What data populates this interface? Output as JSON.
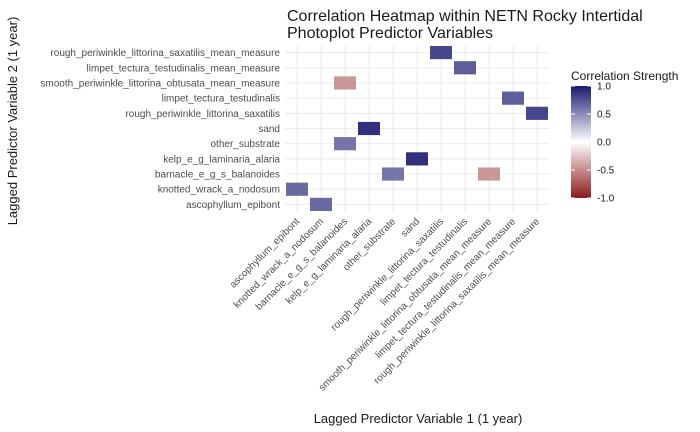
{
  "chart_data": {
    "type": "heatmap",
    "title": [
      "Correlation Heatmap within NETN Rocky Intertidal",
      "Photoplot Predictor Variables"
    ],
    "xlabel": "Lagged Predictor Variable 1 (1 year)",
    "ylabel": "Lagged Predictor Variable 2 (1 year)",
    "x_categories": [
      "ascophyllum_epibont",
      "knotted_wrack_a_nodosum",
      "barnacle_e_g_s_balanoides",
      "kelp_e_g_laminaria_alaria",
      "other_substrate",
      "sand",
      "rough_periwinkle_littorina_saxatilis",
      "limpet_tectura_testudinalis",
      "smooth_periwinkle_littorina_obtusata_mean_measure",
      "limpet_tectura_testudinalis_mean_measure",
      "rough_periwinkle_littorina_saxatilis_mean_measure"
    ],
    "y_categories": [
      "ascophyllum_epibont",
      "knotted_wrack_a_nodosum",
      "barnacle_e_g_s_balanoides",
      "kelp_e_g_laminaria_alaria",
      "other_substrate",
      "sand",
      "rough_periwinkle_littorina_saxatilis",
      "limpet_tectura_testudinalis",
      "smooth_periwinkle_littorina_obtusata_mean_measure",
      "limpet_tectura_testudinalis_mean_measure",
      "rough_periwinkle_littorina_saxatilis_mean_measure"
    ],
    "cells": [
      {
        "x": "knotted_wrack_a_nodosum",
        "y": "ascophyllum_epibont",
        "value": 0.65
      },
      {
        "x": "ascophyllum_epibont",
        "y": "knotted_wrack_a_nodosum",
        "value": 0.65
      },
      {
        "x": "sand",
        "y": "kelp_e_g_laminaria_alaria",
        "value": 0.9
      },
      {
        "x": "kelp_e_g_laminaria_alaria",
        "y": "sand",
        "value": 0.9
      },
      {
        "x": "other_substrate",
        "y": "barnacle_e_g_s_balanoides",
        "value": 0.6
      },
      {
        "x": "barnacle_e_g_s_balanoides",
        "y": "other_substrate",
        "value": 0.6
      },
      {
        "x": "smooth_periwinkle_littorina_obtusata_mean_measure",
        "y": "barnacle_e_g_s_balanoides",
        "value": -0.45
      },
      {
        "x": "barnacle_e_g_s_balanoides",
        "y": "smooth_periwinkle_littorina_obtusata_mean_measure",
        "value": -0.45
      },
      {
        "x": "rough_periwinkle_littorina_saxatilis_mean_measure",
        "y": "rough_periwinkle_littorina_saxatilis",
        "value": 0.8
      },
      {
        "x": "rough_periwinkle_littorina_saxatilis",
        "y": "rough_periwinkle_littorina_saxatilis_mean_measure",
        "value": 0.8
      },
      {
        "x": "limpet_tectura_testudinalis_mean_measure",
        "y": "limpet_tectura_testudinalis",
        "value": 0.7
      },
      {
        "x": "limpet_tectura_testudinalis",
        "y": "limpet_tectura_testudinalis_mean_measure",
        "value": 0.7
      }
    ],
    "legend": {
      "title": "Correlation Strength",
      "ticks": [
        1.0,
        0.5,
        0.0,
        -0.5,
        -1.0
      ],
      "tick_labels": [
        "1.0",
        "0.5",
        "0.0",
        "-0.5",
        "-1.0"
      ],
      "range": [
        -1,
        1
      ],
      "colors": {
        "low": "#8B1A1A",
        "mid": "#ffffff",
        "high": "#191970"
      }
    },
    "grid": true
  }
}
